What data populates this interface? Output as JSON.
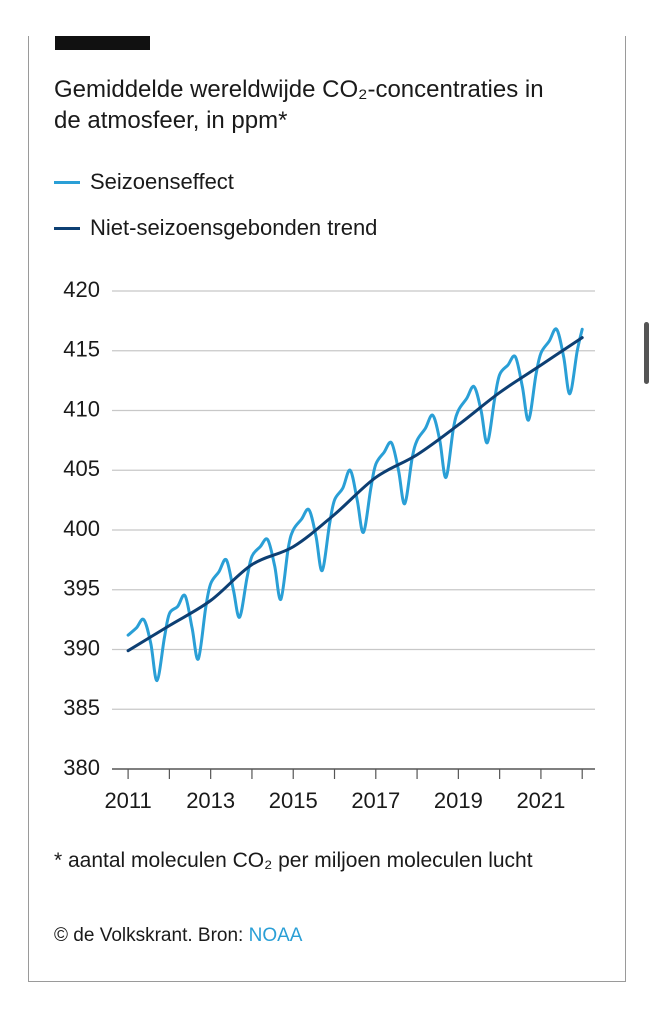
{
  "chart_data": {
    "type": "line",
    "title": "Gemiddelde wereldwijde CO₂-concentraties in de atmosfeer, in ppm*",
    "series": [
      {
        "name": "Seizoenseffect",
        "color": "#2a9fd6",
        "x": [
          2011,
          2011.2,
          2011.38,
          2011.55,
          2011.7,
          2011.88,
          2012,
          2012.2,
          2012.38,
          2012.55,
          2012.7,
          2012.88,
          2013,
          2013.2,
          2013.38,
          2013.55,
          2013.7,
          2013.88,
          2014,
          2014.2,
          2014.38,
          2014.55,
          2014.7,
          2014.88,
          2015,
          2015.2,
          2015.38,
          2015.55,
          2015.7,
          2015.88,
          2016,
          2016.2,
          2016.38,
          2016.55,
          2016.7,
          2016.88,
          2017,
          2017.2,
          2017.38,
          2017.55,
          2017.7,
          2017.88,
          2018,
          2018.2,
          2018.38,
          2018.55,
          2018.7,
          2018.88,
          2019,
          2019.2,
          2019.38,
          2019.55,
          2019.7,
          2019.88,
          2020,
          2020.2,
          2020.38,
          2020.55,
          2020.7,
          2020.88,
          2021,
          2021.2,
          2021.38,
          2021.55,
          2021.7,
          2021.88,
          2022
        ],
        "values": [
          391.2,
          391.8,
          392.5,
          390.5,
          387.4,
          391.0,
          393.0,
          393.6,
          394.5,
          391.8,
          389.2,
          393.5,
          395.5,
          396.5,
          397.5,
          395.0,
          392.7,
          396.0,
          397.8,
          398.6,
          399.2,
          397.0,
          394.2,
          398.5,
          400.0,
          400.9,
          401.7,
          399.5,
          396.6,
          400.5,
          402.5,
          403.5,
          405.0,
          402.5,
          399.8,
          403.5,
          405.5,
          406.5,
          407.3,
          405.0,
          402.2,
          406.0,
          407.5,
          408.5,
          409.6,
          407.5,
          404.4,
          408.5,
          410.0,
          411.0,
          412.0,
          410.0,
          407.3,
          411.0,
          413.0,
          413.8,
          414.5,
          412.0,
          409.2,
          413.0,
          414.8,
          415.8,
          416.8,
          414.5,
          411.4,
          415.0,
          416.8
        ]
      },
      {
        "name": "Niet-seizoensgebonden trend",
        "color": "#0d3f73",
        "x": [
          2011,
          2012,
          2013,
          2014,
          2015,
          2016,
          2017,
          2018,
          2019,
          2020,
          2021,
          2022
        ],
        "values": [
          389.9,
          392.0,
          394.1,
          397.1,
          398.6,
          401.3,
          404.4,
          406.3,
          408.8,
          411.5,
          413.8,
          416.1
        ]
      }
    ],
    "xlim": [
      2010.61,
      2022.31
    ],
    "xticks": [
      2011,
      2013,
      2015,
      2017,
      2019,
      2021
    ],
    "xminor_ticks": [
      2012,
      2014,
      2016,
      2018,
      2020,
      2022
    ],
    "ylim": [
      380,
      420
    ],
    "yticks": [
      380,
      385,
      390,
      395,
      400,
      405,
      410,
      415,
      420
    ],
    "grid": true,
    "footnote": "* aantal moleculen CO₂ per miljoen moleculen lucht",
    "source": {
      "text": "© de Volkskrant. Bron:",
      "link": "NOAA"
    }
  }
}
